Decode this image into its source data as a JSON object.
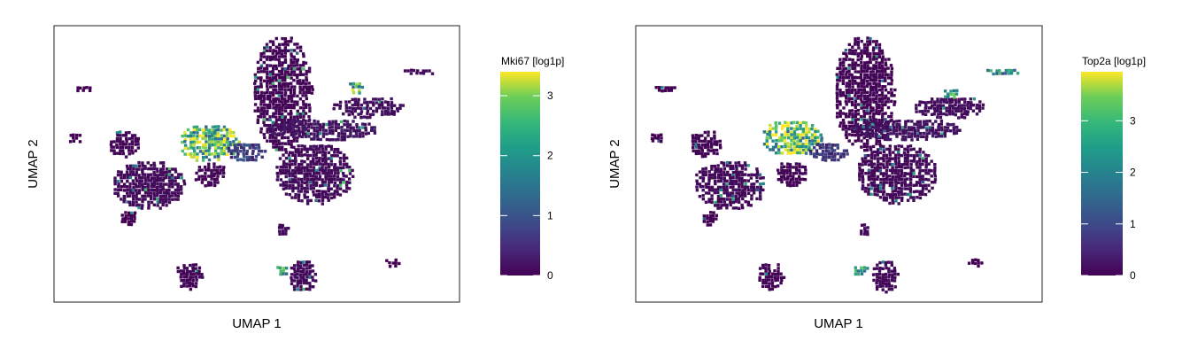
{
  "chart_data": [
    {
      "type": "scatter",
      "style": "hexbin",
      "xlabel": "UMAP 1",
      "ylabel": "UMAP 2",
      "colorbar": {
        "title": "Mki67 [log1p]",
        "min": 0,
        "max": 3.4,
        "ticks": [
          "0",
          "1",
          "2",
          "3"
        ],
        "colormap": "viridis"
      },
      "colormap_stops": [
        "#440154",
        "#3b528b",
        "#21918c",
        "#5ec962",
        "#fde725"
      ],
      "clusters": [
        {
          "x": 0.56,
          "y": 0.76,
          "rx": 0.075,
          "ry": 0.21,
          "value": 0.05
        },
        {
          "x": 0.38,
          "y": 0.58,
          "rx": 0.075,
          "ry": 0.07,
          "value": 2.4
        },
        {
          "x": 0.47,
          "y": 0.55,
          "rx": 0.05,
          "ry": 0.035,
          "value": 0.6
        },
        {
          "x": 0.23,
          "y": 0.43,
          "rx": 0.09,
          "ry": 0.09,
          "value": 0.1
        },
        {
          "x": 0.17,
          "y": 0.58,
          "rx": 0.04,
          "ry": 0.05,
          "value": 0.05
        },
        {
          "x": 0.38,
          "y": 0.47,
          "rx": 0.04,
          "ry": 0.045,
          "value": 0.05
        },
        {
          "x": 0.64,
          "y": 0.47,
          "rx": 0.1,
          "ry": 0.11,
          "value": 0.1
        },
        {
          "x": 0.66,
          "y": 0.63,
          "rx": 0.14,
          "ry": 0.04,
          "value": 0.2
        },
        {
          "x": 0.77,
          "y": 0.71,
          "rx": 0.09,
          "ry": 0.04,
          "value": 0.15
        },
        {
          "x": 0.33,
          "y": 0.1,
          "rx": 0.035,
          "ry": 0.05,
          "value": 0.05
        },
        {
          "x": 0.61,
          "y": 0.1,
          "rx": 0.035,
          "ry": 0.06,
          "value": 0.1
        },
        {
          "x": 0.05,
          "y": 0.6,
          "rx": 0.02,
          "ry": 0.02,
          "value": 0.0
        },
        {
          "x": 0.07,
          "y": 0.78,
          "rx": 0.03,
          "ry": 0.012,
          "value": 0.0
        },
        {
          "x": 0.9,
          "y": 0.84,
          "rx": 0.045,
          "ry": 0.014,
          "value": 0.1
        },
        {
          "x": 0.83,
          "y": 0.15,
          "rx": 0.02,
          "ry": 0.018,
          "value": 0.0
        },
        {
          "x": 0.18,
          "y": 0.31,
          "rx": 0.022,
          "ry": 0.03,
          "value": 0.0
        },
        {
          "x": 0.56,
          "y": 0.27,
          "rx": 0.015,
          "ry": 0.025,
          "value": 0.1
        },
        {
          "x": 0.74,
          "y": 0.78,
          "rx": 0.02,
          "ry": 0.025,
          "value": 2.2
        },
        {
          "x": 0.56,
          "y": 0.12,
          "rx": 0.02,
          "ry": 0.02,
          "value": 2.0
        }
      ]
    },
    {
      "type": "scatter",
      "style": "hexbin",
      "xlabel": "UMAP 1",
      "ylabel": "UMAP 2",
      "colorbar": {
        "title": "Top2a [log1p]",
        "min": 0,
        "max": 3.95,
        "ticks": [
          "0",
          "1",
          "2",
          "3"
        ],
        "colormap": "viridis"
      },
      "colormap_stops": [
        "#440154",
        "#3b528b",
        "#21918c",
        "#5ec962",
        "#fde725"
      ],
      "clusters": [
        {
          "x": 0.56,
          "y": 0.76,
          "rx": 0.075,
          "ry": 0.21,
          "value": 0.05
        },
        {
          "x": 0.38,
          "y": 0.6,
          "rx": 0.075,
          "ry": 0.065,
          "value": 3.0
        },
        {
          "x": 0.47,
          "y": 0.55,
          "rx": 0.05,
          "ry": 0.035,
          "value": 0.6
        },
        {
          "x": 0.23,
          "y": 0.43,
          "rx": 0.09,
          "ry": 0.09,
          "value": 0.1
        },
        {
          "x": 0.17,
          "y": 0.58,
          "rx": 0.04,
          "ry": 0.05,
          "value": 0.05
        },
        {
          "x": 0.38,
          "y": 0.47,
          "rx": 0.04,
          "ry": 0.045,
          "value": 0.05
        },
        {
          "x": 0.64,
          "y": 0.47,
          "rx": 0.1,
          "ry": 0.11,
          "value": 0.1
        },
        {
          "x": 0.66,
          "y": 0.63,
          "rx": 0.14,
          "ry": 0.04,
          "value": 0.2
        },
        {
          "x": 0.77,
          "y": 0.71,
          "rx": 0.09,
          "ry": 0.04,
          "value": 0.15
        },
        {
          "x": 0.33,
          "y": 0.1,
          "rx": 0.035,
          "ry": 0.05,
          "value": 0.05
        },
        {
          "x": 0.61,
          "y": 0.1,
          "rx": 0.035,
          "ry": 0.06,
          "value": 0.1
        },
        {
          "x": 0.05,
          "y": 0.6,
          "rx": 0.02,
          "ry": 0.02,
          "value": 0.0
        },
        {
          "x": 0.07,
          "y": 0.78,
          "rx": 0.03,
          "ry": 0.012,
          "value": 0.0
        },
        {
          "x": 0.9,
          "y": 0.84,
          "rx": 0.045,
          "ry": 0.014,
          "value": 1.8
        },
        {
          "x": 0.83,
          "y": 0.15,
          "rx": 0.02,
          "ry": 0.018,
          "value": 0.0
        },
        {
          "x": 0.18,
          "y": 0.31,
          "rx": 0.022,
          "ry": 0.03,
          "value": 0.0
        },
        {
          "x": 0.56,
          "y": 0.27,
          "rx": 0.015,
          "ry": 0.025,
          "value": 0.1
        },
        {
          "x": 0.77,
          "y": 0.76,
          "rx": 0.02,
          "ry": 0.02,
          "value": 2.4
        },
        {
          "x": 0.55,
          "y": 0.12,
          "rx": 0.02,
          "ry": 0.02,
          "value": 2.2
        }
      ]
    }
  ]
}
